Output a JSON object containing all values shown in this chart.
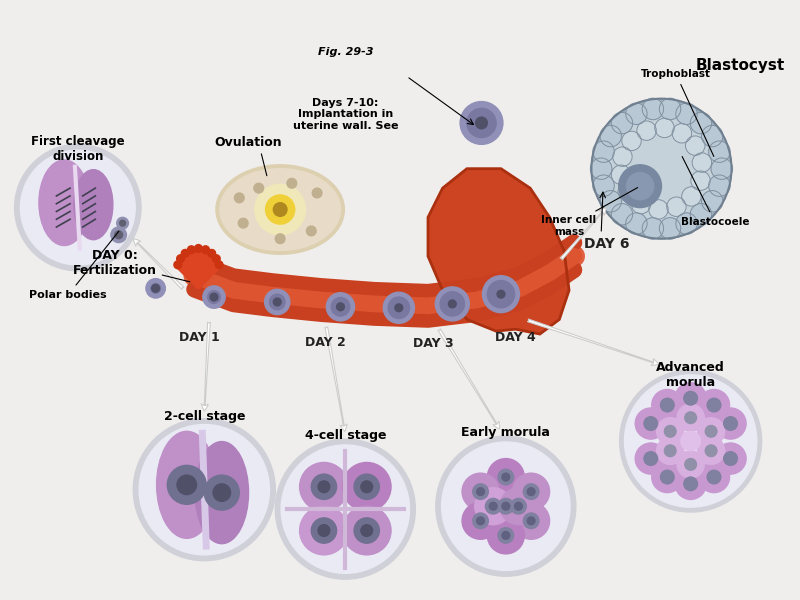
{
  "bg_color": "#f0eeec",
  "labels": {
    "polar_bodies": "Polar bodies",
    "first_cleavage": "First cleavage\ndivision",
    "two_cell": "2-cell stage",
    "four_cell": "4-cell stage",
    "early_morula": "Early morula",
    "advanced_morula": "Advanced\nmorula",
    "day0": "DAY 0:\nFertilization",
    "day1": "DAY 1",
    "day2": "DAY 2",
    "day3": "DAY 3",
    "day4": "DAY 4",
    "day6": "DAY 6",
    "ovulation": "Ovulation",
    "implantation": "Days 7-10:\nImplantation in\nuterine wall. See",
    "implantation_fig": "Fig. 29-3",
    "inner_cell_mass": "Inner cell\nmass",
    "blastocoele": "Blastocoele",
    "trophoblast": "Trophoblast",
    "blastocyst": "Blastocyst"
  },
  "colors": {
    "zona": "#d0d0d8",
    "zona_inner": "#eaeaf5",
    "cell_purple_light": "#c090c8",
    "cell_purple_dark": "#b080bc",
    "nucleus_dark": "#707090",
    "nucleus_darker": "#505068",
    "morula_light": "#d0a0d8",
    "morula_dark": "#b880c0",
    "adv_morula": "#c898d0",
    "adv_morula2": "#d8b0e0",
    "uterus_red": "#cc4422",
    "uterus_orange": "#e06040",
    "ovary_outer": "#ddd0b0",
    "ovary_inner": "#e8dcc8",
    "follicle_bg": "#f0e8b8",
    "follicle_yellow": "#f0d038",
    "follicle_core": "#b08820",
    "fimbriae": "#dd4422",
    "tube_cell": "#9090b8",
    "tube_cell_inner": "#7878a0",
    "tube_cell_dot": "#505068",
    "blasto_outer": "#9aabba",
    "blasto_bg": "#c5d2da",
    "blasto_cell": "#b8c8d4",
    "blasto_cell2": "#ccd8e0",
    "blasto_grid": "#8090a0",
    "icm": "#7888a0",
    "icm2": "#8898b0",
    "spindle": "#404050",
    "polar_body": "#9090b0",
    "polar_dot": "#606070"
  }
}
